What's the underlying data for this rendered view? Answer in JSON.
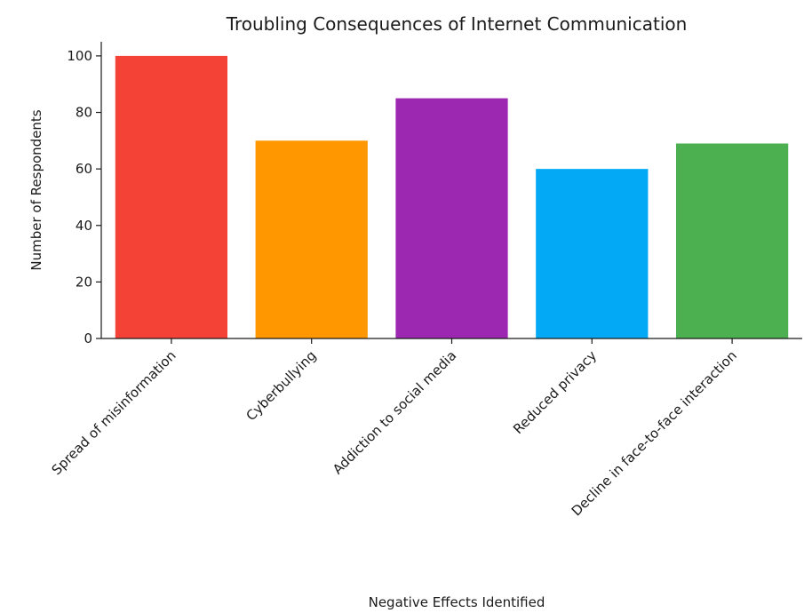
{
  "chart_data": {
    "type": "bar",
    "title": "Troubling Consequences of Internet Communication",
    "xlabel": "Negative Effects Identified",
    "ylabel": "Number of Respondents",
    "categories": [
      "Spread of misinformation",
      "Cyberbullying",
      "Addiction to social media",
      "Reduced privacy",
      "Decline in face-to-face interaction"
    ],
    "values": [
      100,
      70,
      85,
      60,
      69
    ],
    "colors": [
      "#f44336",
      "#ff9800",
      "#9c27b0",
      "#03a9f4",
      "#4caf50"
    ],
    "ylim": [
      0,
      105
    ],
    "yticks": [
      0,
      20,
      40,
      60,
      80,
      100
    ],
    "grid": false,
    "legend": "none"
  }
}
